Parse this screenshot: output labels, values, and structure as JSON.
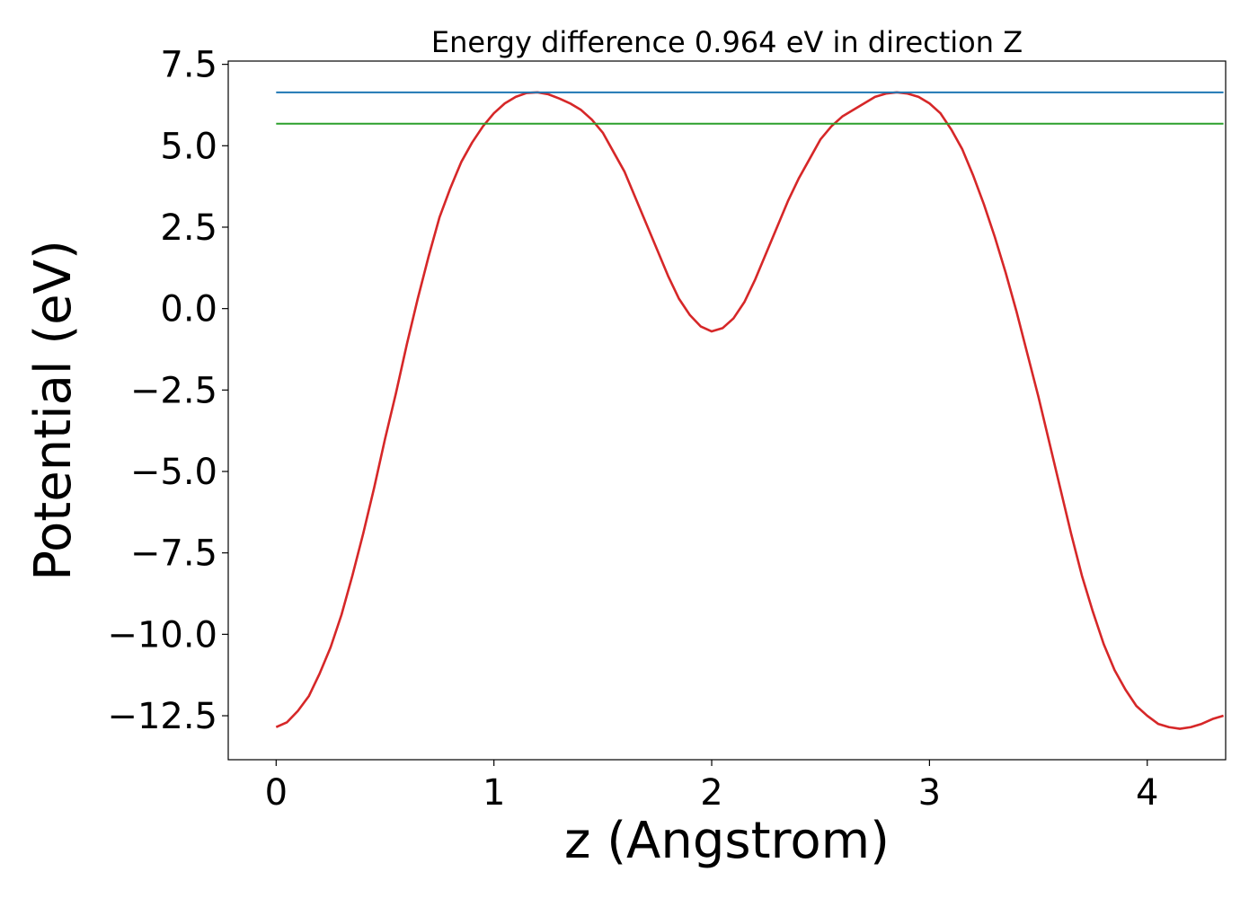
{
  "chart_data": {
    "type": "line",
    "title": "Energy difference 0.964 eV in direction Z",
    "xlabel": "z (Angstrom)",
    "ylabel": "Potential (eV)",
    "xlim": [
      -0.22,
      4.36
    ],
    "ylim": [
      -13.85,
      7.6
    ],
    "grid": false,
    "legend": "none",
    "x_ticks": [
      {
        "value": 0,
        "label": "0"
      },
      {
        "value": 1,
        "label": "1"
      },
      {
        "value": 2,
        "label": "2"
      },
      {
        "value": 3,
        "label": "3"
      },
      {
        "value": 4,
        "label": "4"
      }
    ],
    "y_ticks": [
      {
        "value": 7.5,
        "label": "7.5"
      },
      {
        "value": 5.0,
        "label": "5.0"
      },
      {
        "value": 2.5,
        "label": "2.5"
      },
      {
        "value": 0.0,
        "label": "0.0"
      },
      {
        "value": -2.5,
        "label": "−2.5"
      },
      {
        "value": -5.0,
        "label": "−5.0"
      },
      {
        "value": -7.5,
        "label": "−7.5"
      },
      {
        "value": -10.0,
        "label": "−10.0"
      },
      {
        "value": -12.5,
        "label": "−12.5"
      }
    ],
    "series": [
      {
        "color": "#d62728",
        "x": [
          0.0,
          0.05,
          0.1,
          0.15,
          0.2,
          0.25,
          0.3,
          0.35,
          0.4,
          0.45,
          0.5,
          0.55,
          0.6,
          0.65,
          0.7,
          0.75,
          0.8,
          0.85,
          0.9,
          0.95,
          1.0,
          1.05,
          1.1,
          1.15,
          1.2,
          1.25,
          1.3,
          1.35,
          1.4,
          1.45,
          1.5,
          1.55,
          1.6,
          1.65,
          1.7,
          1.75,
          1.8,
          1.85,
          1.9,
          1.95,
          2.0,
          2.05,
          2.1,
          2.15,
          2.2,
          2.25,
          2.3,
          2.35,
          2.4,
          2.45,
          2.5,
          2.55,
          2.6,
          2.65,
          2.7,
          2.75,
          2.8,
          2.85,
          2.9,
          2.95,
          3.0,
          3.05,
          3.1,
          3.15,
          3.2,
          3.25,
          3.3,
          3.35,
          3.4,
          3.45,
          3.5,
          3.55,
          3.6,
          3.65,
          3.7,
          3.75,
          3.8,
          3.85,
          3.9,
          3.95,
          4.0,
          4.05,
          4.1,
          4.15,
          4.2,
          4.25,
          4.3,
          4.35
        ],
        "y": [
          -12.85,
          -12.7,
          -12.35,
          -11.9,
          -11.2,
          -10.4,
          -9.4,
          -8.2,
          -6.9,
          -5.5,
          -4.0,
          -2.6,
          -1.1,
          0.3,
          1.6,
          2.8,
          3.7,
          4.5,
          5.1,
          5.6,
          6.0,
          6.3,
          6.5,
          6.62,
          6.64,
          6.58,
          6.45,
          6.3,
          6.1,
          5.8,
          5.4,
          4.8,
          4.2,
          3.4,
          2.6,
          1.8,
          1.0,
          0.3,
          -0.2,
          -0.55,
          -0.7,
          -0.6,
          -0.3,
          0.2,
          0.9,
          1.7,
          2.5,
          3.3,
          4.0,
          4.6,
          5.2,
          5.6,
          5.9,
          6.1,
          6.3,
          6.5,
          6.6,
          6.64,
          6.6,
          6.5,
          6.3,
          6.0,
          5.5,
          4.9,
          4.1,
          3.2,
          2.2,
          1.1,
          -0.1,
          -1.4,
          -2.7,
          -4.1,
          -5.5,
          -6.9,
          -8.2,
          -9.3,
          -10.3,
          -11.1,
          -11.7,
          -12.2,
          -12.5,
          -12.75,
          -12.85,
          -12.9,
          -12.85,
          -12.75,
          -12.6,
          -12.5
        ]
      },
      {
        "color": "#1f77b4",
        "x": [
          0.0,
          4.35
        ],
        "y": [
          6.64,
          6.64
        ]
      },
      {
        "color": "#2ca02c",
        "x": [
          0.0,
          4.35
        ],
        "y": [
          5.676,
          5.676
        ]
      }
    ]
  }
}
